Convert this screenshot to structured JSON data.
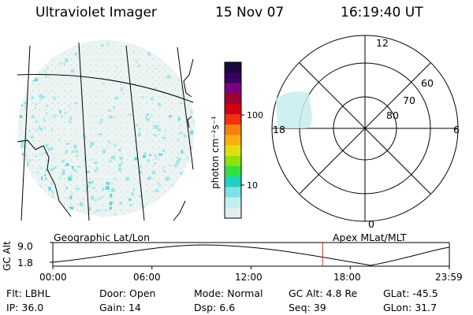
{
  "header": {
    "instrument": "Ultraviolet Imager",
    "date": "15 Nov 07",
    "time": "16:19:40 UT"
  },
  "colorbar": {
    "unit_label": "photon cm⁻²s⁻¹",
    "ticks": [
      "100",
      "10"
    ],
    "scale": "log",
    "colors": [
      "#1a0a3a",
      "#3a0060",
      "#7a0080",
      "#a00030",
      "#d00010",
      "#f03010",
      "#f88010",
      "#f8b010",
      "#e0e010",
      "#90e010",
      "#30e040",
      "#20d0c0",
      "#80e0e8",
      "#c0f0f0",
      "#e0f0f0"
    ]
  },
  "polar_plot": {
    "ring_labels": [
      "60",
      "70",
      "80"
    ],
    "mlt_labels": {
      "top": "12",
      "left": "18",
      "right": "6",
      "bottom": "0"
    }
  },
  "strip": {
    "left_label": "Geographic Lat/Lon",
    "right_label": "Apex MLat/MLT",
    "y_axis_title": "GC Alt",
    "y_max": "9.0",
    "y_min": "1.8",
    "x_ticks": [
      "00:00",
      "06:00",
      "12:00",
      "18:00",
      "23:59"
    ],
    "cursor_time_hours": 16.33,
    "cursor_color": "#c03030"
  },
  "info": {
    "row1": [
      {
        "label": "Flt:",
        "value": "LBHL"
      },
      {
        "label": "Door:",
        "value": "Open"
      },
      {
        "label": "Mode:",
        "value": "Normal"
      },
      {
        "label": "GC Alt:",
        "value": "4.8 Re"
      },
      {
        "label": "GLat:",
        "value": "-45.5"
      }
    ],
    "row2": [
      {
        "label": "IP:",
        "value": "36.0"
      },
      {
        "label": "Gain:",
        "value": "14"
      },
      {
        "label": "Dsp:",
        "value": "6.6"
      },
      {
        "label": "Seq:",
        "value": "39"
      },
      {
        "label": "GLon:",
        "value": "31.7"
      }
    ]
  }
}
